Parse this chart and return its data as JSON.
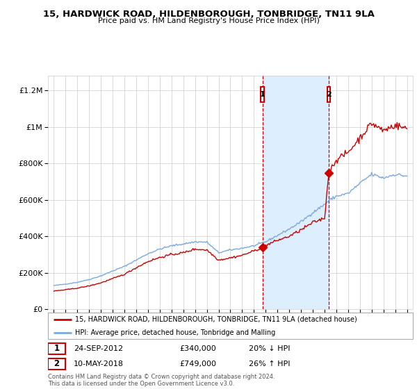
{
  "title": "15, HARDWICK ROAD, HILDENBOROUGH, TONBRIDGE, TN11 9LA",
  "subtitle": "Price paid vs. HM Land Registry's House Price Index (HPI)",
  "legend_line1": "15, HARDWICK ROAD, HILDENBOROUGH, TONBRIDGE, TN11 9LA (detached house)",
  "legend_line2": "HPI: Average price, detached house, Tonbridge and Malling",
  "sale1_date": "24-SEP-2012",
  "sale1_price": "£340,000",
  "sale1_hpi": "20% ↓ HPI",
  "sale2_date": "10-MAY-2018",
  "sale2_price": "£749,000",
  "sale2_hpi": "26% ↑ HPI",
  "copyright": "Contains HM Land Registry data © Crown copyright and database right 2024.\nThis data is licensed under the Open Government Licence v3.0.",
  "red_color": "#cc0000",
  "blue_color": "#7aaadd",
  "shade_color": "#ddeeff",
  "ylim": [
    0,
    1280000
  ],
  "xlim_start": 1994.5,
  "xlim_end": 2025.5,
  "sale1_year": 2012.73,
  "sale2_year": 2018.36,
  "sale1_price_val": 340000,
  "sale2_price_val": 749000,
  "yticks": [
    0,
    200000,
    400000,
    600000,
    800000,
    1000000,
    1200000
  ],
  "ytick_labels": [
    "£0",
    "£200K",
    "£400K",
    "£600K",
    "£800K",
    "£1M",
    "£1.2M"
  ],
  "xticks": [
    1995,
    1996,
    1997,
    1998,
    1999,
    2000,
    2001,
    2002,
    2003,
    2004,
    2005,
    2006,
    2007,
    2008,
    2009,
    2010,
    2011,
    2012,
    2013,
    2014,
    2015,
    2016,
    2017,
    2018,
    2019,
    2020,
    2021,
    2022,
    2023,
    2024,
    2025
  ]
}
